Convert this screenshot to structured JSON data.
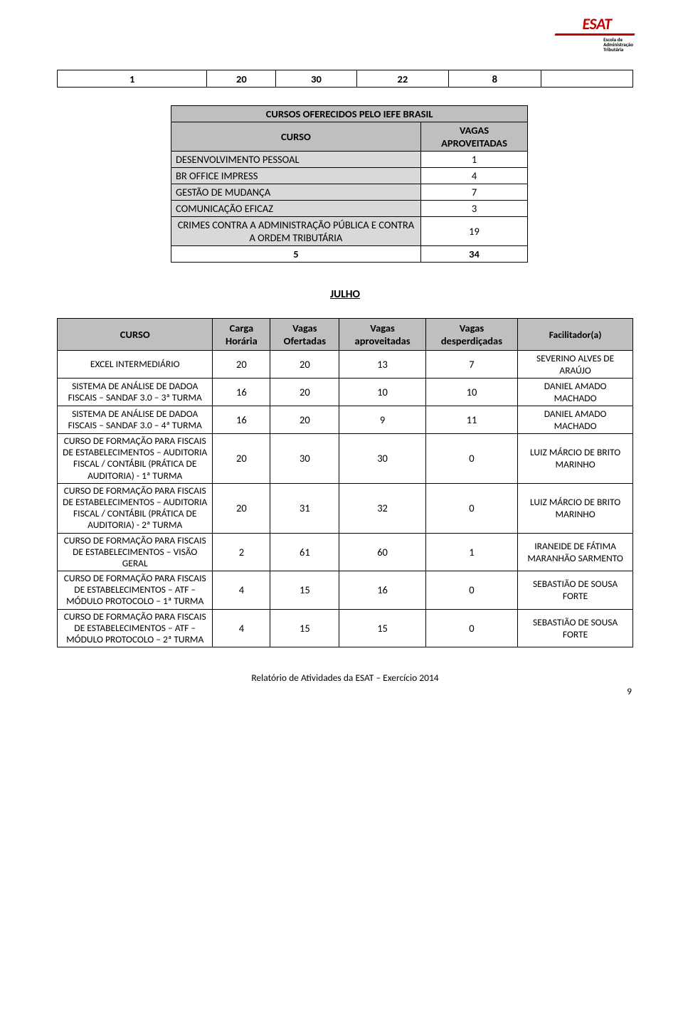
{
  "logo": {
    "main": "ESAT",
    "sub1": "Escola de",
    "sub2": "Administração",
    "sub3": "Tributária"
  },
  "top_row": {
    "c1": "1",
    "c2": "20",
    "c3": "30",
    "c4": "22",
    "c5": "8",
    "c6": ""
  },
  "iefe": {
    "title": "CURSOS OFERECIDOS PELO IEFE BRASIL",
    "h_curso": "CURSO",
    "h_vagas": "VAGAS APROVEITADAS",
    "rows": [
      {
        "label": "DESENVOLVIMENTO PESSOAL",
        "val": "1"
      },
      {
        "label": "BR OFFICE IMPRESS",
        "val": "4"
      },
      {
        "label": "GESTÃO DE MUDANÇA",
        "val": "7"
      },
      {
        "label": "COMUNICAÇÃO EFICAZ",
        "val": "3"
      },
      {
        "label": "CRIMES CONTRA A ADMINISTRAÇÃO PÚBLICA E CONTRA A ORDEM TRIBUTÁRIA",
        "val": "19"
      }
    ],
    "total_label": "5",
    "total_val": "34"
  },
  "month": "JULHO",
  "headers": {
    "curso": "CURSO",
    "carga": "Carga Horária",
    "ofertadas": "Vagas Ofertadas",
    "aproveitadas": "Vagas aproveitadas",
    "desperdicadas": "Vagas desperdiçadas",
    "facilitador": "Facilitador(a)"
  },
  "rows": [
    {
      "curso": "EXCEL INTERMEDIÁRIO",
      "ch": "20",
      "of": "20",
      "ap": "13",
      "de": "7",
      "fa": "SEVERINO ALVES DE ARAÚJO"
    },
    {
      "curso": "SISTEMA DE ANÁLISE DE DADOA FISCAIS – SANDAF 3.0 – 3ª TURMA",
      "ch": "16",
      "of": "20",
      "ap": "10",
      "de": "10",
      "fa": "DANIEL AMADO MACHADO"
    },
    {
      "curso": "SISTEMA DE ANÁLISE DE DADOA FISCAIS – SANDAF 3.0 – 4ª TURMA",
      "ch": "16",
      "of": "20",
      "ap": "9",
      "de": "11",
      "fa": "DANIEL AMADO MACHADO"
    },
    {
      "curso": "CURSO DE FORMAÇÃO PARA FISCAIS DE ESTABELECIMENTOS – AUDITORIA FISCAL / CONTÁBIL (PRÁTICA DE AUDITORIA) - 1ª TURMA",
      "ch": "20",
      "of": "30",
      "ap": "30",
      "de": "0",
      "fa": "LUIZ MÁRCIO DE BRITO MARINHO"
    },
    {
      "curso": "CURSO DE FORMAÇÃO PARA FISCAIS DE ESTABELECIMENTOS – AUDITORIA FISCAL / CONTÁBIL (PRÁTICA DE AUDITORIA) - 2ª TURMA",
      "ch": "20",
      "of": "31",
      "ap": "32",
      "de": "0",
      "fa": "LUIZ MÁRCIO DE BRITO MARINHO"
    },
    {
      "curso": "CURSO DE FORMAÇÃO PARA FISCAIS DE ESTABELECIMENTOS – VISÃO GERAL",
      "ch": "2",
      "of": "61",
      "ap": "60",
      "de": "1",
      "fa": "IRANEIDE DE FÁTIMA MARANHÃO SARMENTO"
    },
    {
      "curso": "CURSO DE FORMAÇÃO PARA FISCAIS DE ESTABELECIMENTOS – ATF – MÓDULO PROTOCOLO – 1ª TURMA",
      "ch": "4",
      "of": "15",
      "ap": "16",
      "de": "0",
      "fa": "SEBASTIÃO DE SOUSA FORTE"
    },
    {
      "curso": "CURSO DE FORMAÇÃO PARA FISCAIS DE ESTABELECIMENTOS – ATF – MÓDULO PROTOCOLO – 2ª TURMA",
      "ch": "4",
      "of": "15",
      "ap": "15",
      "de": "0",
      "fa": "SEBASTIÃO DE SOUSA FORTE"
    }
  ],
  "footer": "Relatório de Atividades da ESAT – Exercício 2014",
  "page": "9"
}
